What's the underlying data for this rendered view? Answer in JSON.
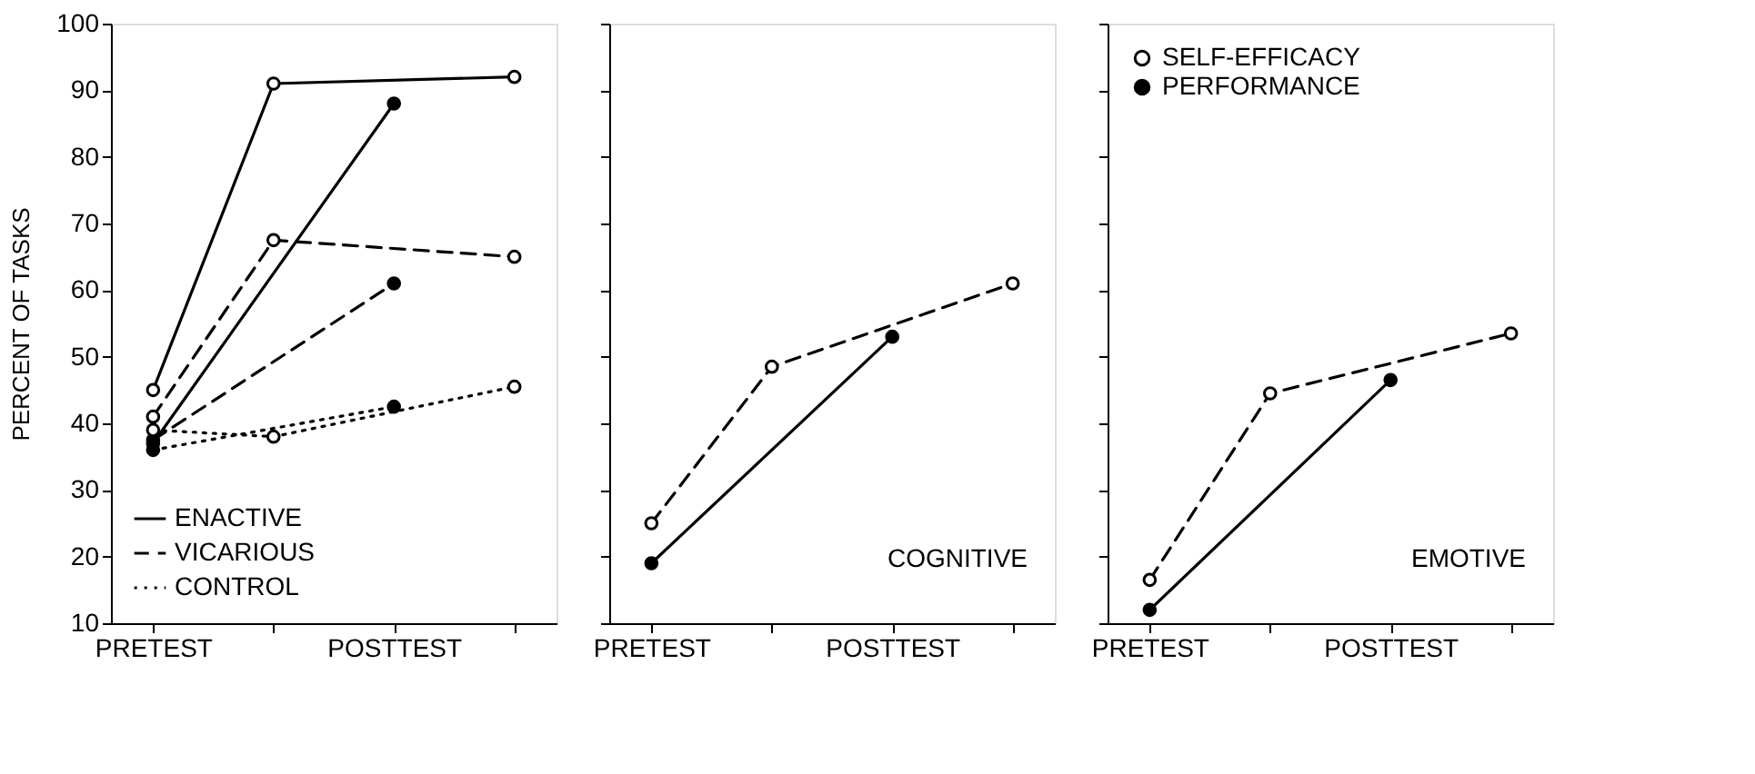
{
  "chart_data": [
    {
      "type": "line",
      "ylabel": "PERCENT OF TASKS",
      "categories": [
        "PRETEST",
        null,
        "POSTTEST",
        null
      ],
      "ylim": [
        10,
        100
      ],
      "yticks": [
        10,
        20,
        30,
        40,
        50,
        60,
        70,
        80,
        90,
        100
      ],
      "grid": false,
      "legend": "bottom left",
      "marker": "circle",
      "series": [
        {
          "name": "ENACTIVE",
          "color": "#000000",
          "line_style": "solid",
          "colors": [
            "#ffffff",
            "#ffffff",
            null,
            "#ffffff"
          ],
          "values": [
            45,
            91,
            null,
            92
          ]
        },
        {
          "color": "#000000",
          "line_style": "solid",
          "colors": [
            "#000000",
            null,
            "#000000",
            null
          ],
          "values": [
            37,
            null,
            88,
            null
          ]
        },
        {
          "name": "VICARIOUS",
          "color": "#000000",
          "line_style": "dashed",
          "colors": [
            "#ffffff",
            "#ffffff",
            null,
            "#ffffff"
          ],
          "values": [
            41,
            67.5,
            null,
            65
          ]
        },
        {
          "color": "#000000",
          "line_style": "dashed",
          "colors": [
            "#000000",
            null,
            "#000000",
            null
          ],
          "values": [
            37.5,
            null,
            61,
            null
          ]
        },
        {
          "name": "CONTROL",
          "color": "#000000",
          "line_style": "dotted",
          "colors": [
            "#ffffff",
            "#ffffff",
            null,
            "#ffffff"
          ],
          "values": [
            39,
            38,
            null,
            45.5
          ]
        },
        {
          "color": "#000000",
          "line_style": "dotted",
          "colors": [
            "#000000",
            null,
            "#000000",
            null
          ],
          "values": [
            36,
            null,
            42.5,
            null
          ]
        }
      ]
    },
    {
      "type": "line",
      "categories": [
        "PRETEST",
        null,
        "POSTTEST",
        null
      ],
      "ylim": [
        10,
        100
      ],
      "yticks": [
        10,
        20,
        30,
        40,
        50,
        60,
        70,
        80,
        90,
        100
      ],
      "grid": false,
      "tick_labels": "x",
      "marker": "circle",
      "annotations": [
        "COGNITIVE"
      ],
      "series": [
        {
          "color": "#000000",
          "line_style": "dashed",
          "colors": [
            "#ffffff",
            "#ffffff",
            null,
            "#ffffff"
          ],
          "values": [
            25,
            48.5,
            null,
            61
          ]
        },
        {
          "color": "#000000",
          "line_style": "solid",
          "colors": [
            "#000000",
            null,
            "#000000",
            null
          ],
          "values": [
            19,
            null,
            53,
            null
          ]
        }
      ]
    },
    {
      "type": "line",
      "categories": [
        "PRETEST",
        null,
        "POSTTEST",
        null
      ],
      "ylim": [
        10,
        100
      ],
      "yticks": [
        10,
        20,
        30,
        40,
        50,
        60,
        70,
        80,
        90,
        100
      ],
      "grid": false,
      "tick_labels": "x",
      "legend": "top left",
      "marker": "circle",
      "annotations": [
        "EMOTIVE"
      ],
      "series": [
        {
          "name": "SELF-EFFICACY",
          "color": "#000000",
          "line_style": "dashed",
          "colors": [
            "#ffffff",
            "#ffffff",
            null,
            "#ffffff"
          ],
          "values": [
            16.5,
            44.5,
            null,
            53.5
          ]
        },
        {
          "name": "PERFORMANCE",
          "color": "#000000",
          "line_style": "solid",
          "colors": [
            "#000000",
            null,
            "#000000",
            null
          ],
          "values": [
            12,
            null,
            46.5,
            null
          ]
        }
      ]
    }
  ]
}
